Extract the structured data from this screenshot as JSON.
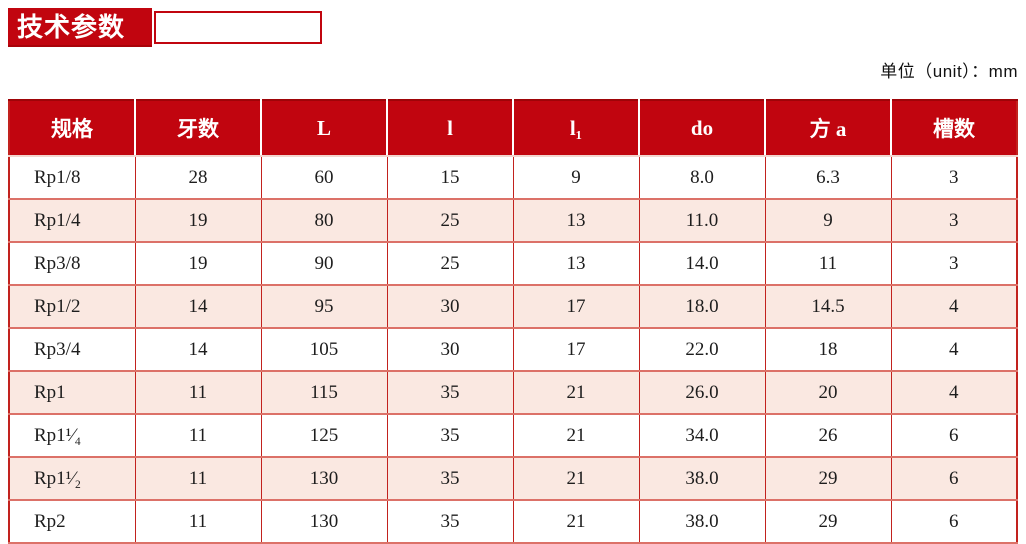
{
  "page": {
    "title_banner": "技术参数",
    "unit_label": "单位（unit）：mm"
  },
  "colors": {
    "header_red": "#c1050f",
    "row_pink": "#fae8e1",
    "border_red": "#c2221e",
    "border_salmon": "#dc7168",
    "header_separator_white": "#ffffff",
    "text_dark": "#1d1d1d"
  },
  "table": {
    "columns": [
      "规格",
      "牙数",
      "L",
      "l",
      "l₁",
      "do",
      "方 a",
      "槽数"
    ],
    "rows": [
      [
        "Rp1/8",
        "28",
        "60",
        "15",
        "9",
        "8.0",
        "6.3",
        "3"
      ],
      [
        "Rp1/4",
        "19",
        "80",
        "25",
        "13",
        "11.0",
        "9",
        "3"
      ],
      [
        "Rp3/8",
        "19",
        "90",
        "25",
        "13",
        "14.0",
        "11",
        "3"
      ],
      [
        "Rp1/2",
        "14",
        "95",
        "30",
        "17",
        "18.0",
        "14.5",
        "4"
      ],
      [
        "Rp3/4",
        "14",
        "105",
        "30",
        "17",
        "22.0",
        "18",
        "4"
      ],
      [
        "Rp1",
        "11",
        "115",
        "35",
        "21",
        "26.0",
        "20",
        "4"
      ],
      [
        "Rp1¹⁄₄",
        "11",
        "125",
        "35",
        "21",
        "34.0",
        "26",
        "6"
      ],
      [
        "Rp1¹⁄₂",
        "11",
        "130",
        "35",
        "21",
        "38.0",
        "29",
        "6"
      ],
      [
        "Rp2",
        "11",
        "130",
        "35",
        "21",
        "38.0",
        "29",
        "6"
      ]
    ]
  }
}
